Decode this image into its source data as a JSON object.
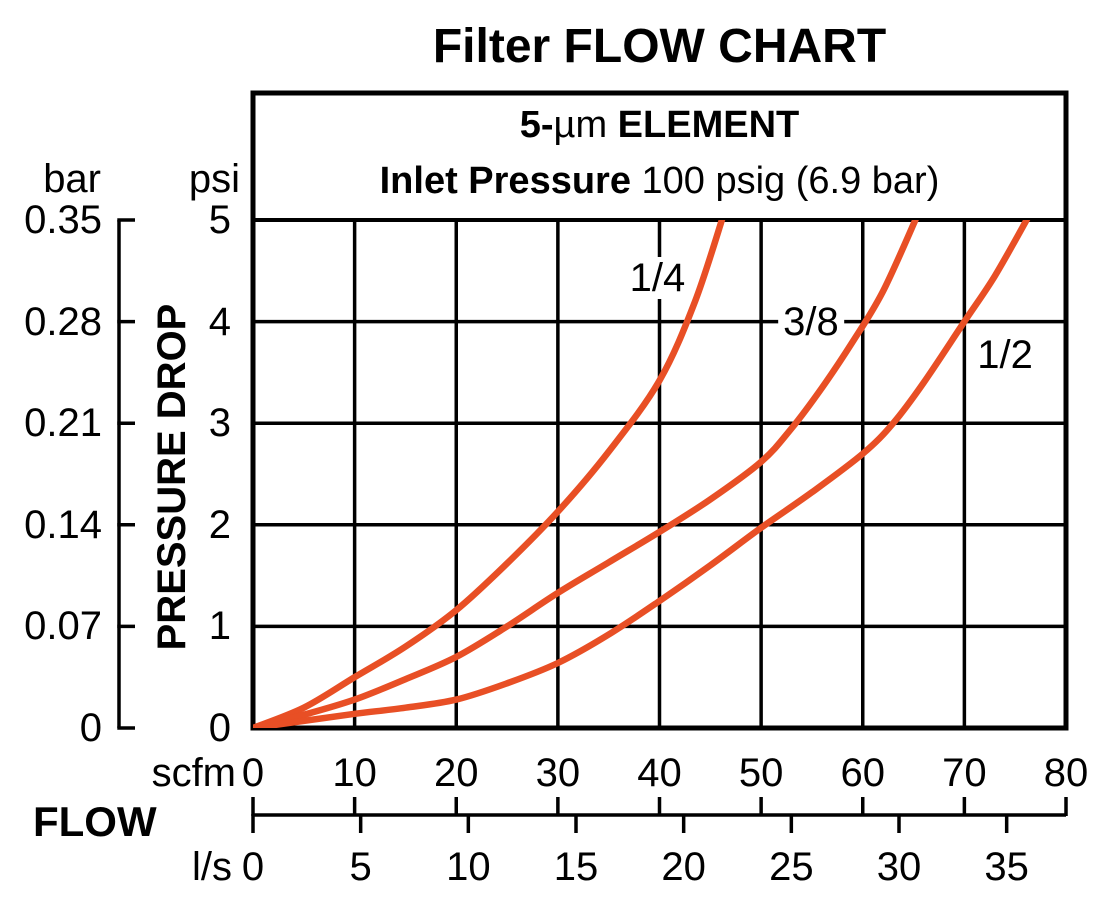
{
  "chart_data": {
    "type": "line",
    "title": "Filter FLOW CHART",
    "header": {
      "line1": {
        "prefix_bold": "5-",
        "mu": "µm",
        "suffix_bold": " ELEMENT"
      },
      "line2": {
        "label_bold": "Inlet Pressure",
        "value": " 100 psig (6.9 bar)"
      }
    },
    "y_axis": {
      "label": "PRESSURE DROP",
      "psi": {
        "unit": "psi",
        "ticks": [
          5,
          4,
          3,
          2,
          1,
          0
        ],
        "range": [
          0,
          5
        ]
      },
      "bar": {
        "unit": "bar",
        "ticks": [
          "0.35",
          "0.28",
          "0.21",
          "0.14",
          "0.07",
          "0"
        ],
        "bar_per_psi": 0.07
      }
    },
    "x_axis": {
      "label": "FLOW",
      "scfm": {
        "unit": "scfm",
        "ticks": [
          0,
          10,
          20,
          30,
          40,
          50,
          60,
          70,
          80
        ],
        "range": [
          0,
          80
        ]
      },
      "ls": {
        "unit": "l/s",
        "ticks": [
          0,
          5,
          10,
          15,
          20,
          25,
          30,
          35
        ],
        "scfm_per_ls": 2.1189
      }
    },
    "grid": true,
    "legend_position": "inline-curve-labels",
    "curve_color": "#e84f25",
    "line_color": "#000000",
    "series": [
      {
        "name": "1/4",
        "label_at": {
          "scfm": 39.8,
          "psi": 4.43
        },
        "points": [
          [
            0,
            0
          ],
          [
            5,
            0.2
          ],
          [
            10,
            0.5
          ],
          [
            15,
            0.8
          ],
          [
            20,
            1.16
          ],
          [
            25,
            1.62
          ],
          [
            30,
            2.13
          ],
          [
            35,
            2.72
          ],
          [
            40,
            3.42
          ],
          [
            43.5,
            4.2
          ],
          [
            46.3,
            5.05
          ]
        ]
      },
      {
        "name": "3/8",
        "label_at": {
          "scfm": 54.9,
          "psi": 4.0
        },
        "points": [
          [
            0,
            0
          ],
          [
            5,
            0.13
          ],
          [
            10,
            0.28
          ],
          [
            15,
            0.48
          ],
          [
            20,
            0.7
          ],
          [
            25,
            1.0
          ],
          [
            30,
            1.33
          ],
          [
            35,
            1.63
          ],
          [
            40,
            1.93
          ],
          [
            45,
            2.25
          ],
          [
            50,
            2.62
          ],
          [
            53,
            2.95
          ],
          [
            56,
            3.35
          ],
          [
            59,
            3.8
          ],
          [
            62,
            4.3
          ],
          [
            65.4,
            5.05
          ]
        ]
      },
      {
        "name": "1/2",
        "label_at": {
          "scfm": 74.0,
          "psi": 3.67
        },
        "points": [
          [
            0,
            0
          ],
          [
            5,
            0.07
          ],
          [
            10,
            0.14
          ],
          [
            15,
            0.2
          ],
          [
            20,
            0.28
          ],
          [
            25,
            0.44
          ],
          [
            30,
            0.64
          ],
          [
            35,
            0.92
          ],
          [
            40,
            1.25
          ],
          [
            45,
            1.6
          ],
          [
            50,
            1.97
          ],
          [
            55,
            2.32
          ],
          [
            60,
            2.7
          ],
          [
            63,
            3.0
          ],
          [
            66,
            3.4
          ],
          [
            70,
            4.0
          ],
          [
            73,
            4.45
          ],
          [
            76.4,
            5.05
          ]
        ]
      }
    ]
  }
}
